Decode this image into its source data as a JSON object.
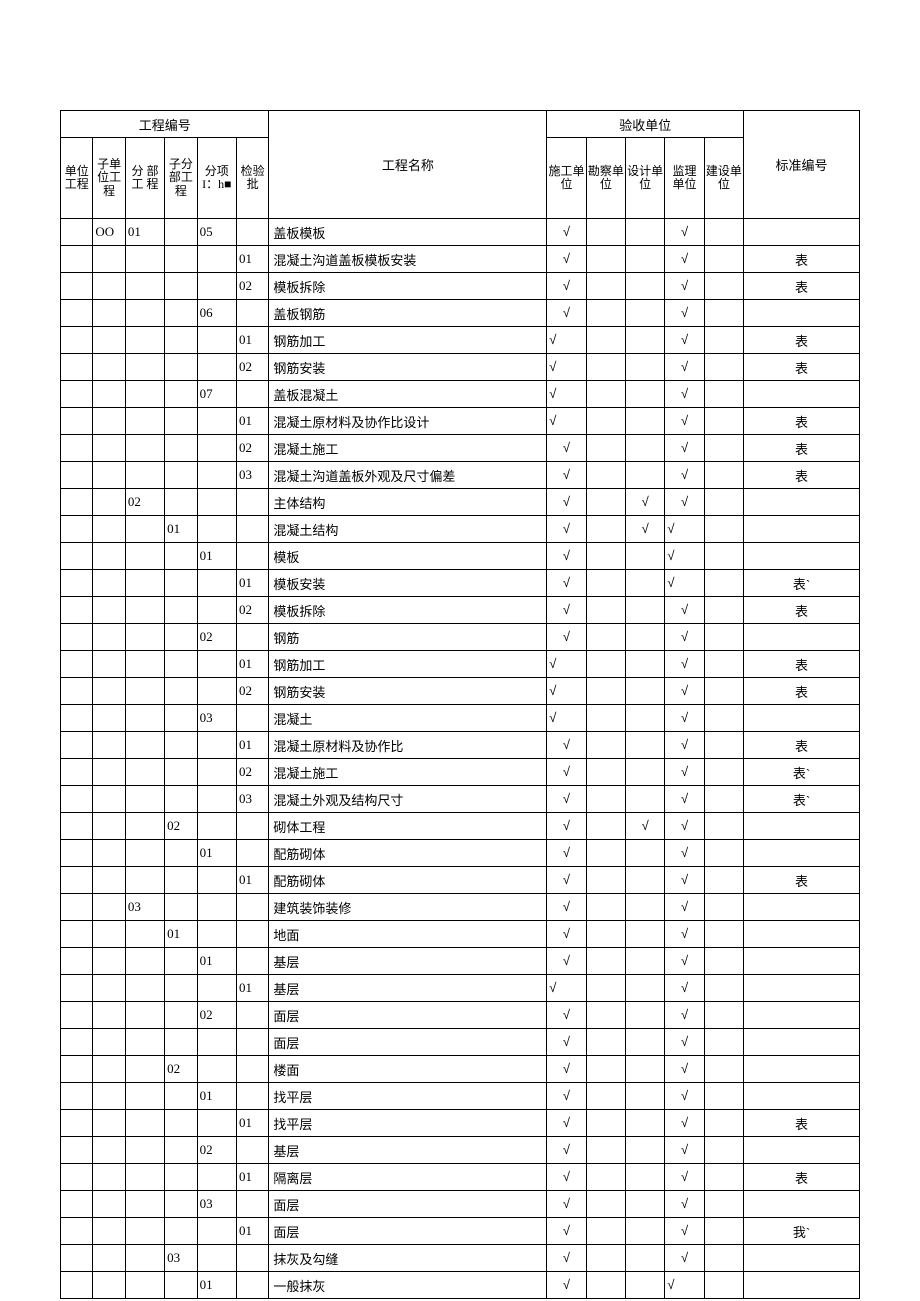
{
  "header": {
    "project_no": "工程编号",
    "accept_unit": "验收单位",
    "standard_no": "标准编号",
    "project_name": "工程名称",
    "cols": {
      "c1": "单位工程",
      "c2": "子单位工程",
      "c3": "分 部工 程",
      "c4": "子分部工程",
      "c5": "分项I：h■",
      "c6": "检验批",
      "a1": "施工单位",
      "a2": "勘察单位",
      "a3": "设计单位",
      "a4": "监理 单位",
      "a5": "建设单位"
    }
  },
  "mark": "√",
  "rows": [
    {
      "c2": "OO",
      "c3": "01",
      "c5": "05",
      "name": "盖板模板",
      "a1": "c",
      "a4": "c"
    },
    {
      "c6": "01",
      "name": "混凝土沟道盖板模板安装",
      "a1": "c",
      "a4": "c",
      "std": "表"
    },
    {
      "c6": "02",
      "name": "模板拆除",
      "a1": "c",
      "a4": "c",
      "std": "表"
    },
    {
      "c5": "06",
      "name": "盖板钢筋",
      "a1": "c",
      "a4": "c"
    },
    {
      "c6": "01",
      "name": "钢筋加工",
      "a1": "l",
      "a4": "c",
      "std": "表"
    },
    {
      "c6": "02",
      "name": "钢筋安装",
      "a1": "l",
      "a4": "c",
      "std": "表"
    },
    {
      "c5": "07",
      "name": "盖板混凝土",
      "a1": "l",
      "a4": "c"
    },
    {
      "c6": "01",
      "name": "混凝土原材料及协作比设计",
      "a1": "l",
      "a4": "c",
      "std": "表"
    },
    {
      "c6": "02",
      "name": "混凝土施工",
      "a1": "c",
      "a4": "c",
      "std": "表"
    },
    {
      "c6": "03",
      "name": "混凝土沟道盖板外观及尺寸偏差",
      "a1": "c",
      "a4": "c",
      "std": "表"
    },
    {
      "c3": "02",
      "name": "主体结构",
      "a1": "c",
      "a3": "c",
      "a4": "c"
    },
    {
      "c4": "01",
      "name": "混凝土结构",
      "a1": "c",
      "a3": "c",
      "a4": "l"
    },
    {
      "c5": "01",
      "name": "模板",
      "a1": "c",
      "a4": "l"
    },
    {
      "c6": "01",
      "name": "模板安装",
      "a1": "c",
      "a4": "l",
      "std": "表`"
    },
    {
      "c6": "02",
      "name": "模板拆除",
      "a1": "c",
      "a4": "c",
      "std": "表"
    },
    {
      "c5": "02",
      "name": "钢筋",
      "a1": "c",
      "a4": "c"
    },
    {
      "c6": "01",
      "name": "钢筋加工",
      "a1": "l",
      "a4": "c",
      "std": "表"
    },
    {
      "c6": "02",
      "name": "钢筋安装",
      "a1": "l",
      "a4": "c",
      "std": "表"
    },
    {
      "c5": "03",
      "name": "混凝土",
      "a1": "l",
      "a4": "c"
    },
    {
      "c6": "01",
      "name": "混凝土原材料及协作比",
      "a1": "c",
      "a4": "c",
      "std": "表"
    },
    {
      "c6": "02",
      "name": "混凝土施工",
      "a1": "c",
      "a4": "c",
      "std": "表`"
    },
    {
      "c6": "03",
      "name": "混凝土外观及结构尺寸",
      "a1": "c",
      "a4": "c",
      "std": "表`"
    },
    {
      "c4": "02",
      "name": "砌体工程",
      "a1": "c",
      "a3": "c",
      "a4": "c"
    },
    {
      "c5": "01",
      "name": "配筋砌体",
      "a1": "c",
      "a4": "c"
    },
    {
      "c6": "01",
      "name": "配筋砌体",
      "a1": "c",
      "a4": "c",
      "std": "表"
    },
    {
      "c3": "03",
      "name": "建筑装饰装修",
      "a1": "c",
      "a4": "c"
    },
    {
      "c4": "01",
      "name": "地面",
      "a1": "c",
      "a4": "c"
    },
    {
      "c5": "01",
      "name": "基层",
      "a1": "c",
      "a4": "c"
    },
    {
      "c6": "01",
      "name": "基层",
      "a1": "l",
      "a4": "c"
    },
    {
      "c5": "02",
      "name": "面层",
      "a1": "c",
      "a4": "c"
    },
    {
      "c6": "",
      "name": "面层",
      "a1": "c",
      "a4": "c"
    },
    {
      "c4": "02",
      "name": "楼面",
      "a1": "c",
      "a4": "c"
    },
    {
      "c5": "01",
      "name": "找平层",
      "a1": "c",
      "a4": "c"
    },
    {
      "c6": "01",
      "name": "找平层",
      "a1": "c",
      "a4": "c",
      "std": "表"
    },
    {
      "c5": "02",
      "name": "基层",
      "a1": "c",
      "a4": "c"
    },
    {
      "c6": "01",
      "name": "隔离层",
      "a1": "c",
      "a4": "c",
      "std": "表"
    },
    {
      "c5": "03",
      "name": "面层",
      "a1": "c",
      "a4": "c"
    },
    {
      "c6": "01",
      "name": "面层",
      "a1": "c",
      "a4": "c",
      "std": "我`"
    },
    {
      "c4": "03",
      "name": "抹灰及勾缝",
      "a1": "c",
      "a4": "c"
    },
    {
      "c5": "01",
      "name": "一般抹灰",
      "a1": "c",
      "a4": "l"
    }
  ],
  "widths": {
    "c1": 28,
    "c2": 28,
    "c3": 34,
    "c4": 28,
    "c5": 34,
    "c6": 28,
    "name": 240,
    "a1": 34,
    "a2": 34,
    "a3": 34,
    "a4": 34,
    "a5": 34,
    "std": 100
  }
}
